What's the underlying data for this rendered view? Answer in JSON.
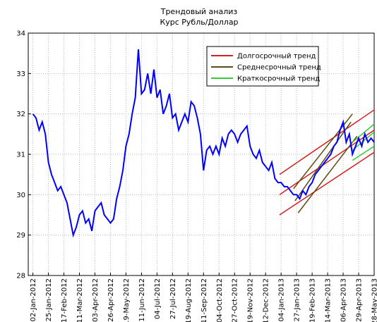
{
  "chart_data": {
    "type": "line",
    "title": "Трендовый анализ",
    "subtitle": "Курс Рубль/Доллар",
    "xlim": [
      -0.3,
      22
    ],
    "xticks": [
      {
        "value": 0,
        "label": "02-Jan-2012"
      },
      {
        "value": 1,
        "label": "25-Jan-2012"
      },
      {
        "value": 2,
        "label": "17-Feb-2012"
      },
      {
        "value": 3,
        "label": "11-Mar-2012"
      },
      {
        "value": 4,
        "label": "03-Apr-2012"
      },
      {
        "value": 5,
        "label": "26-Apr-2012"
      },
      {
        "value": 6,
        "label": "19-May-2012"
      },
      {
        "value": 7,
        "label": "11-Jun-2012"
      },
      {
        "value": 8,
        "label": "04-Jul-2012"
      },
      {
        "value": 9,
        "label": "27-Jul-2012"
      },
      {
        "value": 10,
        "label": "19-Aug-2012"
      },
      {
        "value": 11,
        "label": "11-Sep-2012"
      },
      {
        "value": 12,
        "label": "04-Oct-2012"
      },
      {
        "value": 13,
        "label": "27-Oct-2012"
      },
      {
        "value": 14,
        "label": "19-Nov-2012"
      },
      {
        "value": 15,
        "label": "12-Dec-2012"
      },
      {
        "value": 16,
        "label": "04-Jan-2013"
      },
      {
        "value": 17,
        "label": "27-Jan-2013"
      },
      {
        "value": 18,
        "label": "19-Feb-2013"
      },
      {
        "value": 19,
        "label": "14-Mar-2013"
      },
      {
        "value": 20,
        "label": "06-Apr-2013"
      },
      {
        "value": 21,
        "label": "29-Apr-2013"
      },
      {
        "value": 22,
        "label": "28-May-2013"
      }
    ],
    "ylim": [
      28,
      34
    ],
    "yticks": [
      28,
      29,
      30,
      31,
      32,
      33,
      34
    ],
    "grid": true,
    "series": [
      {
        "color": "#0000ff",
        "values": [
          32.0,
          31.9,
          31.6,
          31.8,
          31.5,
          30.8,
          30.5,
          30.3,
          30.1,
          30.2,
          30.0,
          29.8,
          29.4,
          29.0,
          29.2,
          29.5,
          29.6,
          29.3,
          29.4,
          29.1,
          29.6,
          29.7,
          29.8,
          29.5,
          29.4,
          29.3,
          29.4,
          29.9,
          30.2,
          30.6,
          31.2,
          31.5,
          32.0,
          32.4,
          33.6,
          32.5,
          32.6,
          33.0,
          32.5,
          33.1,
          32.4,
          32.6,
          32.0,
          32.2,
          32.5,
          31.9,
          32.0,
          31.6,
          31.8,
          32.0,
          31.8,
          32.3,
          32.2,
          31.9,
          31.5,
          30.6,
          31.1,
          31.2,
          31.0,
          31.2,
          31.0,
          31.4,
          31.2,
          31.5,
          31.6,
          31.5,
          31.3,
          31.5,
          31.6,
          31.7,
          31.2,
          31.0,
          30.9,
          31.1,
          30.8,
          30.7,
          30.6,
          30.8,
          30.4,
          30.3,
          30.3,
          30.2,
          30.2,
          30.1,
          30.0,
          30.0,
          29.9,
          30.1,
          30.0,
          30.2,
          30.3,
          30.5,
          30.6,
          30.7,
          30.8,
          30.9,
          31.0,
          31.2,
          31.3,
          31.6,
          31.8,
          31.3,
          31.5,
          31.0,
          31.2,
          31.4,
          31.2,
          31.5,
          31.3,
          31.4,
          31.3
        ]
      }
    ],
    "trends": [
      {
        "name": "Долгосрочный тренд",
        "color": "#d42020",
        "lines": [
          {
            "x": [
              15.9,
              22
            ],
            "y": [
              30.5,
              32.1
            ]
          },
          {
            "x": [
              15.9,
              22
            ],
            "y": [
              30.0,
              31.6
            ]
          },
          {
            "x": [
              15.9,
              22
            ],
            "y": [
              29.5,
              31.05
            ]
          }
        ]
      },
      {
        "name": "Среднесрочный тренд",
        "color": "#5c4a10",
        "lines": [
          {
            "x": [
              16.8,
              20.6
            ],
            "y": [
              30.15,
              32.0
            ]
          },
          {
            "x": [
              16.9,
              20.5
            ],
            "y": [
              29.85,
              31.8
            ]
          },
          {
            "x": [
              17.1,
              20.9
            ],
            "y": [
              29.55,
              31.45
            ]
          }
        ]
      },
      {
        "name": "Краткосрочный тренд",
        "color": "#33cc33",
        "lines": [
          {
            "x": [
              20.6,
              22
            ],
            "y": [
              31.3,
              31.75
            ]
          },
          {
            "x": [
              20.6,
              22
            ],
            "y": [
              31.1,
              31.55
            ]
          },
          {
            "x": [
              20.6,
              22
            ],
            "y": [
              30.85,
              31.2
            ]
          }
        ]
      }
    ]
  }
}
